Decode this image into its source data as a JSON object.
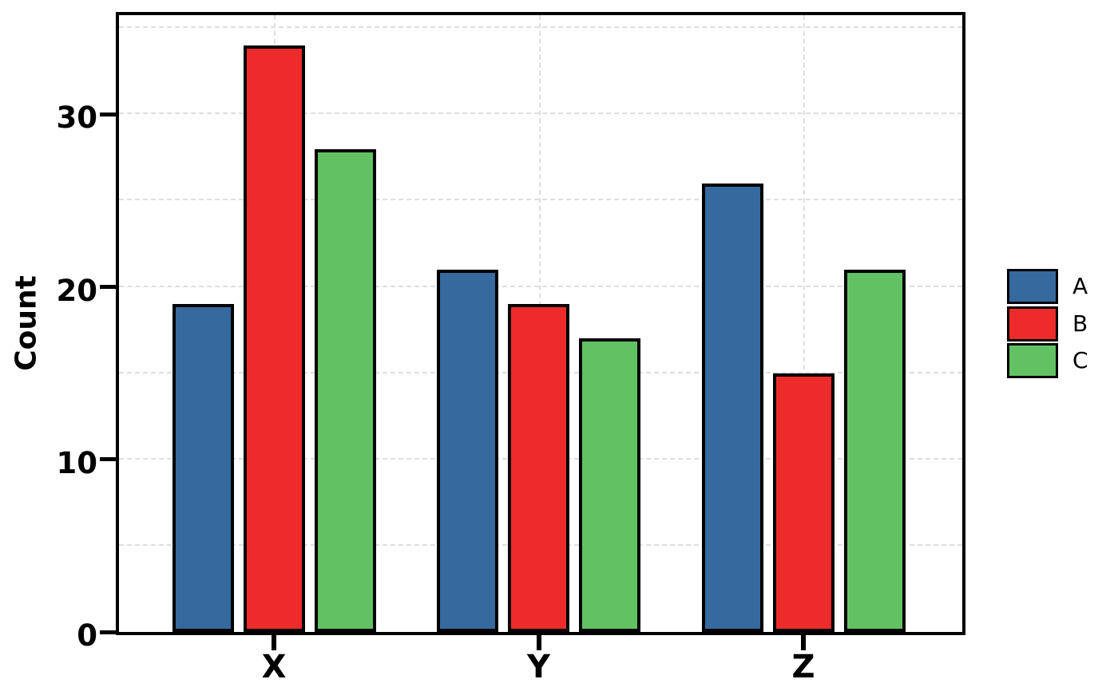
{
  "chart_data": {
    "type": "bar",
    "title": "",
    "xlabel": "",
    "ylabel": "Count",
    "categories": [
      "X",
      "Y",
      "Z"
    ],
    "series": [
      {
        "name": "A",
        "color": "#36699E",
        "values": [
          19,
          21,
          26
        ]
      },
      {
        "name": "B",
        "color": "#ED2B2B",
        "values": [
          34,
          19,
          15
        ]
      },
      {
        "name": "C",
        "color": "#62C263",
        "values": [
          28,
          17,
          21
        ]
      }
    ],
    "ylim": [
      0,
      35.75
    ],
    "yticks": [
      0,
      10,
      20,
      30
    ],
    "grid": {
      "horizontal_minor_step": 5,
      "vertical_at_categories": true,
      "style": "dashed"
    },
    "legend": {
      "position": "right",
      "entries": [
        "A",
        "B",
        "C"
      ]
    },
    "bar_edge_color": "#000000"
  },
  "colors": {
    "background": "#ffffff",
    "axis": "#000000",
    "grid": "#dedede"
  }
}
